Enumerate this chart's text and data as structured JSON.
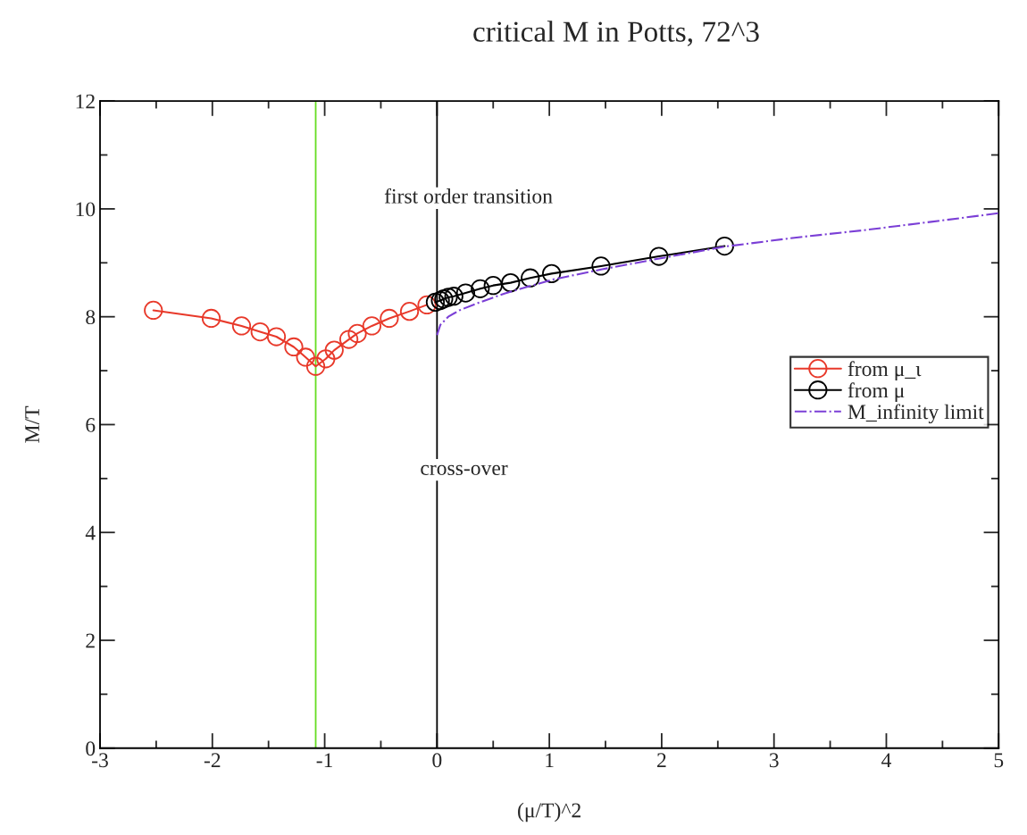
{
  "chart_data": {
    "type": "line",
    "title": "critical M in Potts, 72^3",
    "xlabel": "(μ/T)^2",
    "ylabel": "M/T",
    "xlim": [
      -3,
      5
    ],
    "xticks": [
      -3,
      -2,
      -1,
      0,
      1,
      2,
      3,
      4,
      5
    ],
    "ylim": [
      0,
      12
    ],
    "yticks": [
      0,
      2,
      4,
      6,
      8,
      10,
      12
    ],
    "grid": false,
    "legend": "right",
    "series": [
      {
        "name": "from μ_ι",
        "color": "#e8392a",
        "marker": "circle",
        "line_style": "solid",
        "x": [
          -2.525,
          -2.01,
          -1.74,
          -1.575,
          -1.43,
          -1.275,
          -1.17,
          -1.08,
          -0.99,
          -0.915,
          -0.785,
          -0.71,
          -0.58,
          -0.425,
          -0.245,
          -0.09
        ],
        "values": [
          8.12,
          7.97,
          7.83,
          7.72,
          7.63,
          7.44,
          7.25,
          7.08,
          7.22,
          7.38,
          7.58,
          7.69,
          7.83,
          7.97,
          8.1,
          8.22
        ]
      },
      {
        "name": "from μ",
        "color": "#000000",
        "marker": "circle",
        "line_style": "solid",
        "x": [
          -0.015,
          0.03,
          0.06,
          0.1,
          0.15,
          0.255,
          0.385,
          0.5,
          0.655,
          0.83,
          1.02,
          1.46,
          1.975,
          2.56
        ],
        "values": [
          8.27,
          8.3,
          8.33,
          8.36,
          8.38,
          8.44,
          8.52,
          8.58,
          8.63,
          8.72,
          8.8,
          8.94,
          9.12,
          9.31
        ]
      },
      {
        "name": "M_infinity limit",
        "color": "#7b3fd6",
        "marker": "none",
        "line_style": "dashdot",
        "x": [
          0,
          0.03,
          0.1,
          0.2,
          0.385,
          0.6,
          1.03,
          1.47,
          1.98,
          2.56,
          3.2,
          3.78,
          4.4,
          5
        ],
        "values": [
          7.66,
          7.85,
          8.0,
          8.12,
          8.27,
          8.43,
          8.69,
          8.88,
          9.08,
          9.3,
          9.47,
          9.6,
          9.76,
          9.92
        ]
      }
    ],
    "ref_lines": [
      {
        "axis": "x",
        "value": -1.08,
        "color": "#66dd22"
      },
      {
        "axis": "x",
        "value": 0,
        "color": "#000000"
      }
    ],
    "annotations": [
      "first order transition",
      "cross-over"
    ]
  }
}
